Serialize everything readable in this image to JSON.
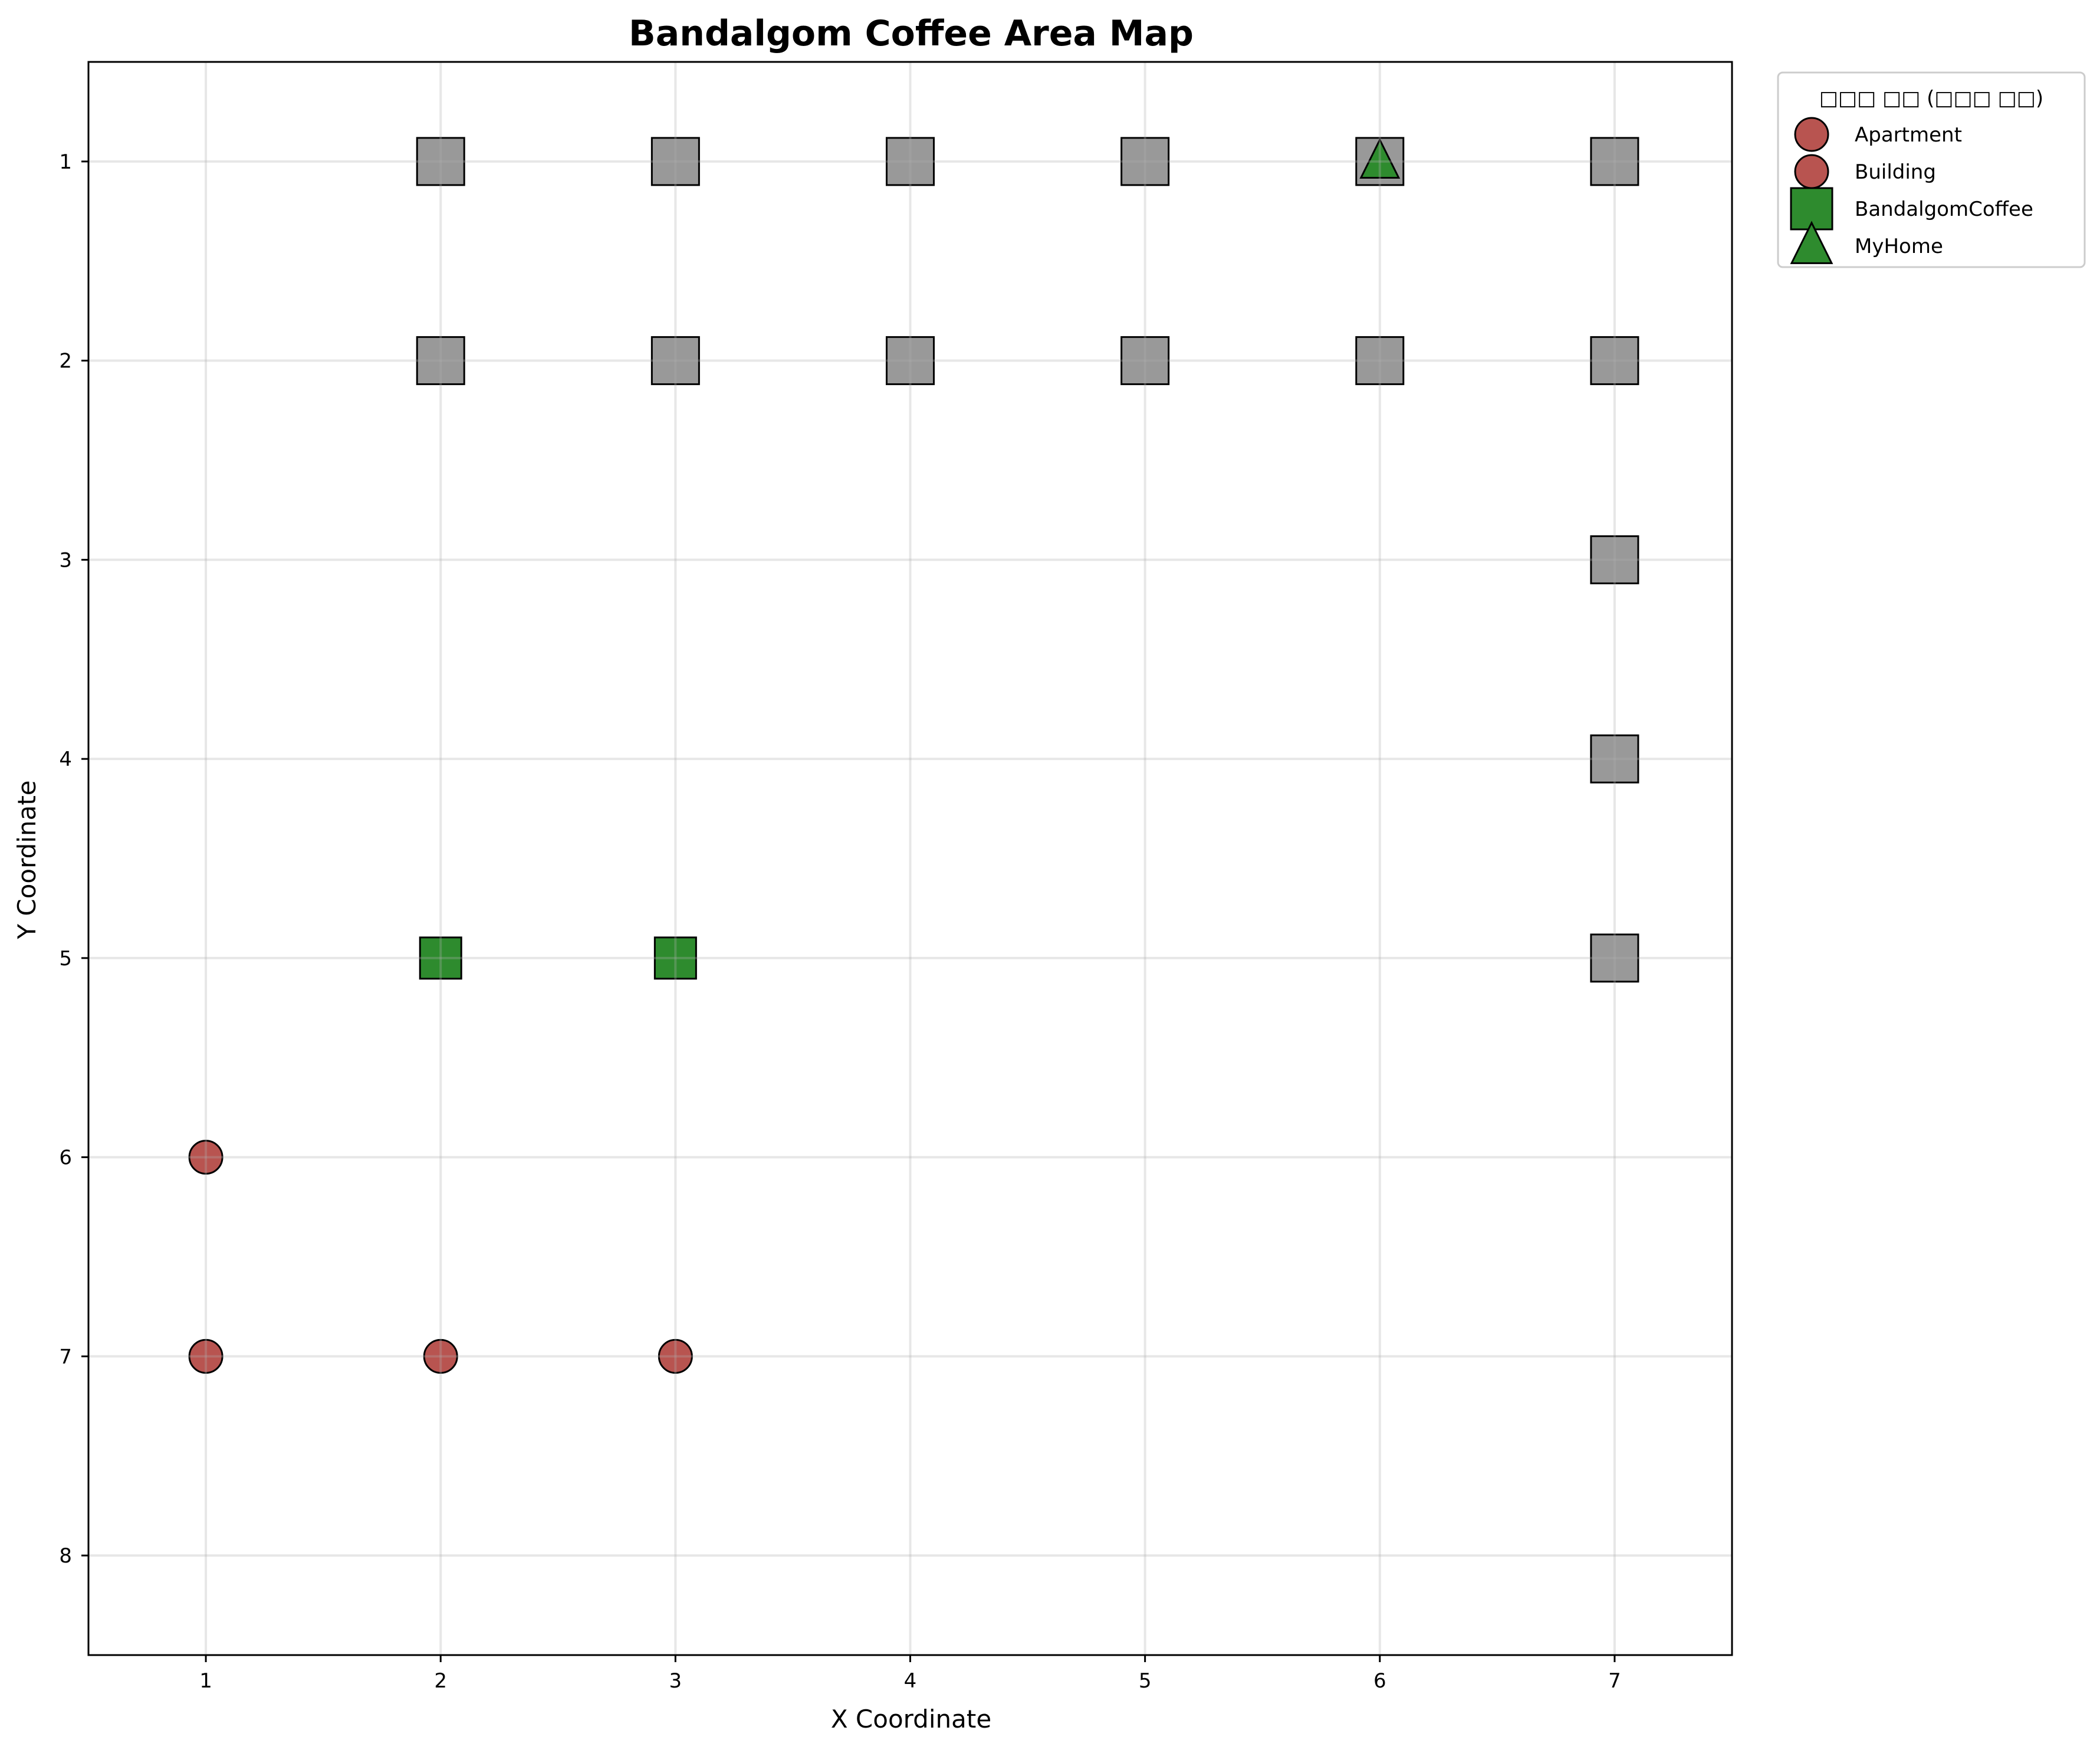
{
  "chart_data": {
    "type": "scatter",
    "title": "Bandalgom Coffee Area Map",
    "xlabel": "X Coordinate",
    "ylabel": "Y Coordinate",
    "xlim": [
      0.5,
      7.5
    ],
    "ylim": [
      0.5,
      8.5
    ],
    "y_inverted": true,
    "xticks": [
      "1",
      "2",
      "3",
      "4",
      "5",
      "6",
      "7"
    ],
    "yticks": [
      "1",
      "2",
      "3",
      "4",
      "5",
      "6",
      "7",
      "8"
    ],
    "grid": true,
    "legend_title": "□□□ □□ (□□□ □□)",
    "legend_placement": "outside upper right",
    "series": [
      {
        "name": "Apartment",
        "marker": "circle",
        "color": "#b85450",
        "points": [
          [
            1,
            6
          ],
          [
            1,
            7
          ],
          [
            2,
            7
          ],
          [
            3,
            7
          ]
        ]
      },
      {
        "name": "Building",
        "marker": "circle",
        "color": "#b85450",
        "points": []
      },
      {
        "name": "BandalgomCoffee",
        "marker": "square",
        "color": "#2e8b2e",
        "points": [
          [
            2,
            5
          ],
          [
            3,
            5
          ]
        ]
      },
      {
        "name": "MyHome",
        "marker": "triangle",
        "color": "#2e8b2e",
        "points": [
          [
            6,
            1
          ]
        ]
      }
    ],
    "unlabeled_points": {
      "marker": "square",
      "color": "#999999",
      "points": [
        [
          2,
          1
        ],
        [
          3,
          1
        ],
        [
          4,
          1
        ],
        [
          5,
          1
        ],
        [
          6,
          1
        ],
        [
          7,
          1
        ],
        [
          2,
          2
        ],
        [
          3,
          2
        ],
        [
          4,
          2
        ],
        [
          5,
          2
        ],
        [
          6,
          2
        ],
        [
          7,
          2
        ],
        [
          7,
          3
        ],
        [
          7,
          4
        ],
        [
          7,
          5
        ]
      ]
    }
  }
}
